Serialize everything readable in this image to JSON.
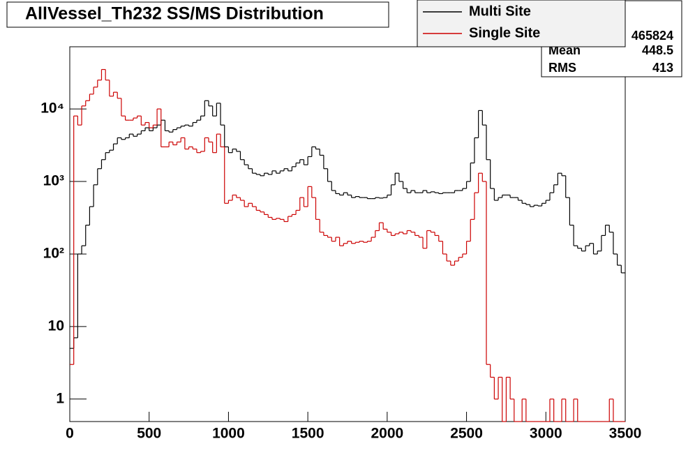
{
  "chart_data": {
    "type": "histogram",
    "title": "AllVessel_Th232 SS/MS Distribution",
    "bins": [
      0,
      25,
      50,
      75,
      100,
      125,
      150,
      175,
      200,
      225,
      250,
      275,
      300,
      325,
      350,
      375,
      400,
      425,
      450,
      475,
      500,
      525,
      550,
      575,
      600,
      625,
      650,
      675,
      700,
      725,
      750,
      775,
      800,
      825,
      850,
      875,
      900,
      925,
      950,
      975,
      1000,
      1025,
      1050,
      1075,
      1100,
      1125,
      1150,
      1175,
      1200,
      1225,
      1250,
      1275,
      1300,
      1325,
      1350,
      1375,
      1400,
      1425,
      1450,
      1475,
      1500,
      1525,
      1550,
      1575,
      1600,
      1625,
      1650,
      1675,
      1700,
      1725,
      1750,
      1775,
      1800,
      1825,
      1850,
      1875,
      1900,
      1925,
      1950,
      1975,
      2000,
      2025,
      2050,
      2075,
      2100,
      2125,
      2150,
      2175,
      2200,
      2225,
      2250,
      2275,
      2300,
      2325,
      2350,
      2375,
      2400,
      2425,
      2450,
      2475,
      2500,
      2525,
      2550,
      2575,
      2600,
      2625,
      2650,
      2675,
      2700,
      2725,
      2750,
      2775,
      2800,
      2825,
      2850,
      2875,
      2900,
      2925,
      2950,
      2975,
      3000,
      3025,
      3050,
      3075,
      3100,
      3125,
      3150,
      3175,
      3200,
      3225,
      3250,
      3275,
      3300,
      3325,
      3350,
      3375,
      3400,
      3425,
      3450,
      3475,
      3500
    ],
    "series": [
      {
        "name": "Multi Site",
        "color": "#000000",
        "values": [
          5,
          7,
          100,
          130,
          250,
          450,
          900,
          1500,
          2000,
          2500,
          2700,
          3300,
          4000,
          3800,
          4000,
          4500,
          4200,
          4500,
          5000,
          5500,
          5000,
          5500,
          6000,
          7000,
          5000,
          4800,
          5200,
          5500,
          5800,
          6000,
          5800,
          6500,
          7000,
          8000,
          13000,
          11000,
          8000,
          12000,
          6000,
          3000,
          2500,
          2800,
          2600,
          2000,
          1700,
          1500,
          1300,
          1250,
          1200,
          1300,
          1250,
          1400,
          1300,
          1400,
          1500,
          1400,
          1600,
          1800,
          2000,
          1700,
          2200,
          3000,
          2800,
          2300,
          1500,
          1000,
          750,
          680,
          650,
          700,
          650,
          600,
          620,
          600,
          600,
          580,
          580,
          600,
          590,
          600,
          650,
          900,
          1300,
          1000,
          800,
          700,
          750,
          700,
          700,
          750,
          700,
          720,
          700,
          680,
          700,
          700,
          700,
          750,
          750,
          800,
          1000,
          1800,
          4000,
          9500,
          6000,
          2000,
          800,
          550,
          600,
          650,
          650,
          600,
          600,
          550,
          500,
          480,
          450,
          470,
          460,
          500,
          550,
          700,
          900,
          1300,
          1200,
          600,
          250,
          130,
          120,
          110,
          130,
          140,
          100,
          110,
          180,
          250,
          200,
          100,
          70,
          55
        ]
      },
      {
        "name": "Single Site",
        "color": "#cc0000",
        "values": [
          3,
          8000,
          6000,
          11000,
          13000,
          16000,
          20000,
          25000,
          35000,
          25000,
          15000,
          17000,
          14000,
          8000,
          7000,
          7000,
          7500,
          8000,
          6000,
          6500,
          5500,
          6000,
          10000,
          3000,
          3000,
          3500,
          3200,
          3500,
          4000,
          2800,
          3000,
          2800,
          2500,
          2600,
          4000,
          3500,
          2500,
          4500,
          3000,
          500,
          550,
          650,
          600,
          550,
          450,
          500,
          450,
          400,
          380,
          350,
          320,
          300,
          310,
          300,
          280,
          330,
          350,
          400,
          600,
          450,
          850,
          600,
          300,
          200,
          180,
          170,
          150,
          170,
          130,
          140,
          150,
          140,
          145,
          150,
          145,
          150,
          170,
          210,
          270,
          220,
          200,
          180,
          190,
          200,
          190,
          210,
          200,
          180,
          170,
          120,
          210,
          200,
          180,
          150,
          100,
          80,
          70,
          80,
          90,
          100,
          150,
          300,
          700,
          1300,
          1000,
          3,
          2,
          1,
          2,
          0,
          2,
          1,
          0,
          0,
          1,
          0,
          0,
          0,
          0,
          0,
          0,
          1,
          0,
          0,
          1,
          0,
          0,
          1,
          0,
          0,
          0,
          0,
          0,
          0,
          0,
          0,
          1,
          0,
          0,
          0
        ]
      }
    ],
    "xlim": [
      0,
      3500
    ],
    "xticks": [
      0,
      500,
      1000,
      1500,
      2000,
      2500,
      3000,
      3500
    ],
    "ylim": [
      0.49,
      72000
    ],
    "log_y": true,
    "yticks": [
      1,
      10,
      {
        "value": 100,
        "label": "10²"
      },
      {
        "value": 1000,
        "label": "10³"
      },
      {
        "value": 10000,
        "label": "10⁴"
      }
    ],
    "stats": {
      "entries": "465824",
      "mean_label": "Mean",
      "mean": "448.5",
      "rms_label": "RMS",
      "rms": "413"
    },
    "legend": "top-right"
  }
}
